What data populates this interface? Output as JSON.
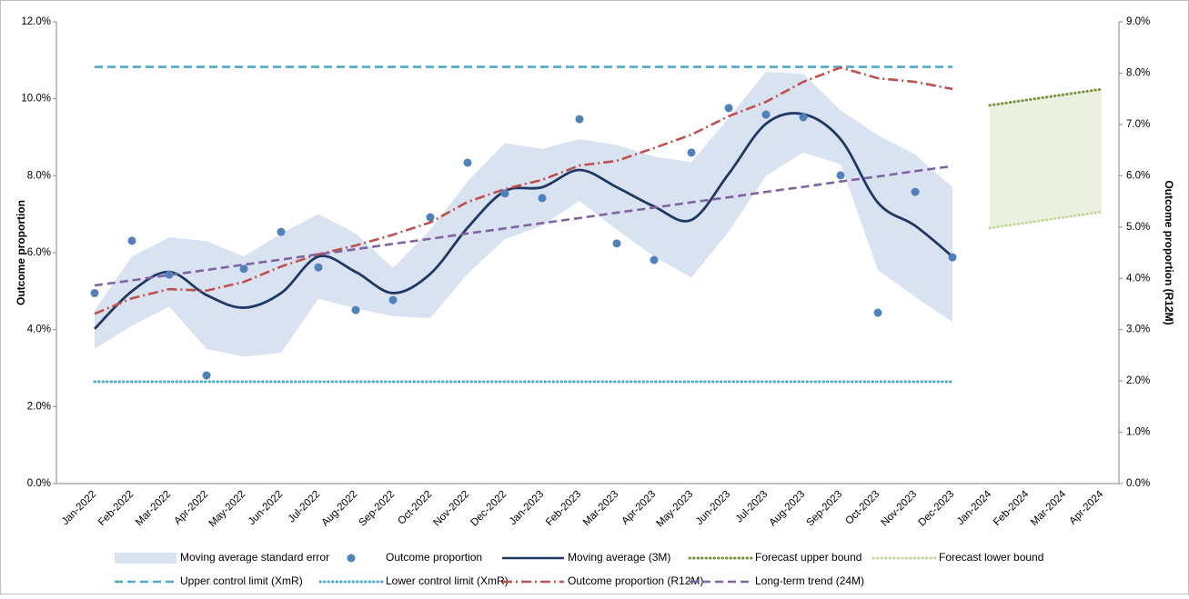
{
  "chart_data": {
    "type": "combo",
    "y_label": "Outcome proportion",
    "y2_label": "Outcome proportion (R12M)",
    "categories": [
      "Jan-2022",
      "Feb-2022",
      "Mar-2022",
      "Apr-2022",
      "May-2022",
      "Jun-2022",
      "Jul-2022",
      "Aug-2022",
      "Sep-2022",
      "Oct-2022",
      "Nov-2022",
      "Dec-2022",
      "Jan-2023",
      "Feb-2023",
      "Mar-2023",
      "Apr-2023",
      "May-2023",
      "Jun-2023",
      "Jul-2023",
      "Aug-2023",
      "Sep-2023",
      "Oct-2023",
      "Nov-2023",
      "Dec-2023",
      "Jan-2024",
      "Feb-2024",
      "Mar-2024",
      "Apr-2024"
    ],
    "ylim": [
      0,
      12
    ],
    "yticks": [
      {
        "value": 0,
        "label": "0.0%"
      },
      {
        "value": 2,
        "label": "2.0%"
      },
      {
        "value": 4,
        "label": "4.0%"
      },
      {
        "value": 6,
        "label": "6.0%"
      },
      {
        "value": 8,
        "label": "8.0%"
      },
      {
        "value": 10,
        "label": "10.0%"
      },
      {
        "value": 12,
        "label": "12.0%"
      }
    ],
    "y2lim": [
      0,
      9
    ],
    "y2ticks": [
      {
        "value": 0,
        "label": "0.0%"
      },
      {
        "value": 1,
        "label": "1.0%"
      },
      {
        "value": 2,
        "label": "2.0%"
      },
      {
        "value": 3,
        "label": "3.0%"
      },
      {
        "value": 4,
        "label": "4.0%"
      },
      {
        "value": 5,
        "label": "5.0%"
      },
      {
        "value": 6,
        "label": "6.0%"
      },
      {
        "value": 7,
        "label": "7.0%"
      },
      {
        "value": 8,
        "label": "8.0%"
      },
      {
        "value": 9,
        "label": "9.0%"
      }
    ],
    "series": [
      {
        "name": "Moving average standard error",
        "kind": "area",
        "color": "#d9e2f1",
        "upper": [
          4.5,
          5.9,
          6.4,
          6.3,
          5.9,
          6.5,
          7.0,
          6.5,
          5.6,
          6.6,
          7.85,
          8.85,
          8.7,
          8.95,
          8.8,
          8.5,
          8.35,
          9.5,
          10.7,
          10.65,
          9.7,
          9.05,
          8.55,
          7.7,
          null,
          null,
          null,
          null
        ],
        "lower": [
          3.5,
          4.1,
          4.6,
          3.5,
          3.3,
          3.4,
          4.8,
          4.55,
          4.35,
          4.3,
          5.45,
          6.35,
          6.7,
          7.35,
          6.6,
          5.9,
          5.35,
          6.55,
          8.0,
          8.6,
          8.3,
          5.55,
          4.85,
          4.2,
          null,
          null,
          null,
          null
        ]
      },
      {
        "name": "Outcome proportion",
        "kind": "scatter",
        "color": "#4f81bd",
        "values": [
          4.95,
          6.31,
          5.43,
          2.81,
          5.58,
          6.54,
          5.62,
          4.51,
          4.77,
          6.92,
          8.34,
          7.54,
          7.42,
          9.47,
          6.24,
          5.81,
          8.6,
          9.76,
          9.59,
          9.52,
          8.01,
          4.44,
          7.58,
          5.88,
          null,
          null,
          null,
          null
        ]
      },
      {
        "name": "Moving average (3M)",
        "kind": "line",
        "smooth": true,
        "dash": "solid",
        "color": "#1f3864",
        "values": [
          4.02,
          5.0,
          5.5,
          4.9,
          4.57,
          4.95,
          5.9,
          5.5,
          4.95,
          5.45,
          6.65,
          7.6,
          7.7,
          8.15,
          7.7,
          7.2,
          6.85,
          8.05,
          9.35,
          9.6,
          8.95,
          7.3,
          6.7,
          5.9,
          null,
          null,
          null,
          null
        ]
      },
      {
        "name": "Forecast upper bound",
        "kind": "line",
        "dash": "dotted",
        "color": "#77933c",
        "fill_color": "#ebf1de",
        "values": [
          null,
          null,
          null,
          null,
          null,
          null,
          null,
          null,
          null,
          null,
          null,
          null,
          null,
          null,
          null,
          null,
          null,
          null,
          null,
          null,
          null,
          null,
          null,
          null,
          9.83,
          9.97,
          10.11,
          10.25
        ]
      },
      {
        "name": "Forecast lower bound",
        "kind": "line",
        "dash": "dotted",
        "color": "#c3d69b",
        "values": [
          null,
          null,
          null,
          null,
          null,
          null,
          null,
          null,
          null,
          null,
          null,
          null,
          null,
          null,
          null,
          null,
          null,
          null,
          null,
          null,
          null,
          null,
          null,
          null,
          6.64,
          6.78,
          6.92,
          7.06
        ]
      },
      {
        "name": "Upper control limit (XmR)",
        "kind": "line",
        "dash": "dashed",
        "color": "#4bacc6",
        "values": [
          10.83,
          10.83,
          10.83,
          10.83,
          10.83,
          10.83,
          10.83,
          10.83,
          10.83,
          10.83,
          10.83,
          10.83,
          10.83,
          10.83,
          10.83,
          10.83,
          10.83,
          10.83,
          10.83,
          10.83,
          10.83,
          10.83,
          10.83,
          10.83,
          null,
          null,
          null,
          null
        ]
      },
      {
        "name": "Lower control limit (XmR)",
        "kind": "line",
        "dash": "dotted",
        "color": "#4bacc6",
        "values": [
          2.65,
          2.65,
          2.65,
          2.65,
          2.65,
          2.65,
          2.65,
          2.65,
          2.65,
          2.65,
          2.65,
          2.65,
          2.65,
          2.65,
          2.65,
          2.65,
          2.65,
          2.65,
          2.65,
          2.65,
          2.65,
          2.65,
          2.65,
          2.65,
          null,
          null,
          null,
          null
        ]
      },
      {
        "name": "Outcome proportion (R12M)",
        "kind": "line",
        "dash": "dashdot",
        "color": "#c0504d",
        "axis": "y2",
        "values": [
          3.31,
          3.61,
          3.79,
          3.76,
          3.93,
          4.23,
          4.47,
          4.64,
          4.85,
          5.09,
          5.49,
          5.74,
          5.92,
          6.2,
          6.29,
          6.54,
          6.8,
          7.16,
          7.44,
          7.83,
          8.11,
          7.9,
          7.83,
          7.69,
          null,
          null,
          null,
          null
        ]
      },
      {
        "name": "Long-term trend (24M)",
        "kind": "line",
        "dash": "dashed",
        "color": "#8064a2",
        "values": [
          5.15,
          5.28,
          5.42,
          5.55,
          5.69,
          5.82,
          5.96,
          6.09,
          6.23,
          6.36,
          6.5,
          6.63,
          6.77,
          6.9,
          7.04,
          7.17,
          7.31,
          7.44,
          7.58,
          7.71,
          7.85,
          7.98,
          8.12,
          8.25,
          null,
          null,
          null,
          null
        ]
      }
    ]
  }
}
